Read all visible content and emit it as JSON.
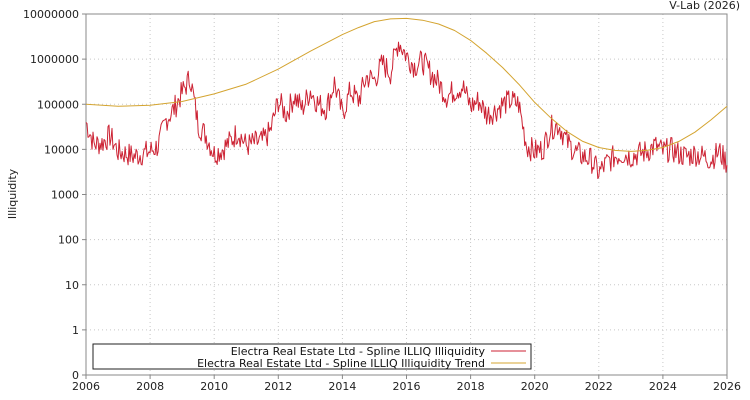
{
  "chart_data": {
    "type": "line",
    "credit": "V-Lab (2026)",
    "title": "",
    "xlabel": "",
    "ylabel": "Illiquidity",
    "y_scale": "log",
    "xlim": [
      2006,
      2026
    ],
    "ylim": [
      0,
      10000000
    ],
    "x_ticks": [
      2006,
      2008,
      2010,
      2012,
      2014,
      2016,
      2018,
      2020,
      2022,
      2024,
      2026
    ],
    "x_tick_labels": [
      "2006",
      "2008",
      "2010",
      "2012",
      "2014",
      "2016",
      "2018",
      "2020",
      "2022",
      "2024",
      "2026"
    ],
    "y_ticks": [
      0,
      1,
      10,
      100,
      1000,
      10000,
      100000,
      1000000,
      10000000
    ],
    "y_tick_labels": [
      "0",
      "1",
      "10",
      "100",
      "1000",
      "10000",
      "100000",
      "1000000",
      "10000000"
    ],
    "grid": true,
    "legend_position": "bottom",
    "series": [
      {
        "name": "Electra Real Estate Ltd - Spline ILLIQ Illiquidity",
        "color": "#cc2233",
        "x": [
          2006.0,
          2006.25,
          2006.5,
          2006.75,
          2007.0,
          2007.25,
          2007.5,
          2007.75,
          2008.0,
          2008.25,
          2008.5,
          2008.75,
          2009.0,
          2009.25,
          2009.5,
          2009.75,
          2010.0,
          2010.25,
          2010.5,
          2010.75,
          2011.0,
          2011.25,
          2011.5,
          2011.75,
          2012.0,
          2012.25,
          2012.5,
          2012.75,
          2013.0,
          2013.25,
          2013.5,
          2013.75,
          2014.0,
          2014.25,
          2014.5,
          2014.75,
          2015.0,
          2015.25,
          2015.5,
          2015.75,
          2016.0,
          2016.25,
          2016.5,
          2016.75,
          2017.0,
          2017.25,
          2017.5,
          2017.75,
          2018.0,
          2018.25,
          2018.5,
          2018.75,
          2019.0,
          2019.25,
          2019.5,
          2019.75,
          2020.0,
          2020.25,
          2020.5,
          2020.75,
          2021.0,
          2021.25,
          2021.5,
          2021.75,
          2022.0,
          2022.25,
          2022.5,
          2022.75,
          2023.0,
          2023.25,
          2023.5,
          2023.75,
          2024.0,
          2024.25,
          2024.5,
          2024.75,
          2025.0,
          2025.25,
          2025.5,
          2025.75,
          2026.0
        ],
        "y": [
          40000,
          13000,
          14000,
          20000,
          9000,
          8000,
          7000,
          8000,
          9000,
          12000,
          45000,
          80000,
          180000,
          400000,
          35000,
          20000,
          8000,
          10000,
          15000,
          25000,
          12000,
          14000,
          15000,
          25000,
          120000,
          60000,
          150000,
          80000,
          200000,
          100000,
          80000,
          300000,
          60000,
          200000,
          120000,
          400000,
          350000,
          800000,
          500000,
          2500000,
          1200000,
          700000,
          900000,
          500000,
          300000,
          150000,
          200000,
          250000,
          90000,
          120000,
          60000,
          70000,
          100000,
          120000,
          100000,
          12000,
          9000,
          10000,
          30000,
          35000,
          15000,
          9000,
          7000,
          6000,
          3000,
          5000,
          7000,
          8000,
          7000,
          8000,
          9000,
          12000,
          9000,
          10000,
          8000,
          7000,
          8000,
          7000,
          6000,
          9000,
          5000
        ]
      },
      {
        "name": "Electra Real Estate Ltd - Spline ILLIQ Illiquidity Trend",
        "color": "#d4a430",
        "x": [
          2006.0,
          2007.0,
          2008.0,
          2009.0,
          2010.0,
          2011.0,
          2012.0,
          2013.0,
          2014.0,
          2014.5,
          2015.0,
          2015.5,
          2016.0,
          2016.5,
          2017.0,
          2017.5,
          2018.0,
          2018.5,
          2019.0,
          2019.5,
          2020.0,
          2020.5,
          2021.0,
          2021.5,
          2022.0,
          2022.5,
          2023.0,
          2023.5,
          2024.0,
          2024.5,
          2025.0,
          2025.5,
          2026.0
        ],
        "y": [
          100000,
          90000,
          95000,
          115000,
          170000,
          280000,
          600000,
          1500000,
          3500000,
          5000000,
          6800000,
          7800000,
          8000000,
          7300000,
          6000000,
          4300000,
          2600000,
          1350000,
          650000,
          280000,
          110000,
          50000,
          25000,
          15000,
          11000,
          9500,
          9000,
          9500,
          11000,
          15000,
          24000,
          45000,
          90000
        ]
      }
    ]
  }
}
